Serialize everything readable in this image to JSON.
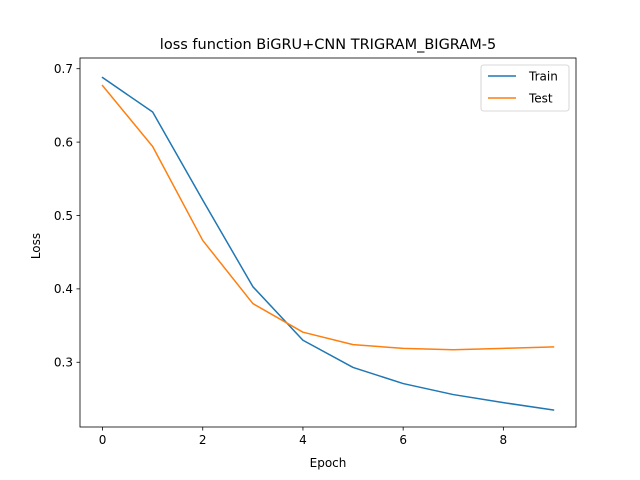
{
  "chart_data": {
    "type": "line",
    "title": "loss function BiGRU+CNN TRIGRAM_BIGRAM-5",
    "xlabel": "Epoch",
    "ylabel": "Loss",
    "x": [
      0,
      1,
      2,
      3,
      4,
      5,
      6,
      7,
      8,
      9
    ],
    "xlim": [
      -0.45,
      9.45
    ],
    "ylim": [
      0.2118,
      0.7146
    ],
    "xticks": [
      0,
      2,
      4,
      6,
      8
    ],
    "xtick_labels": [
      "0",
      "2",
      "4",
      "6",
      "8"
    ],
    "yticks": [
      0.3,
      0.4,
      0.5,
      0.6,
      0.7
    ],
    "ytick_labels": [
      "0.3",
      "0.4",
      "0.5",
      "0.6",
      "0.7"
    ],
    "grid": false,
    "legend_position": "top-right",
    "series": [
      {
        "name": "Train",
        "color": "#1f77b4",
        "values": [
          0.688,
          0.641,
          0.521,
          0.403,
          0.33,
          0.293,
          0.271,
          0.256,
          0.245,
          0.235
        ]
      },
      {
        "name": "Test",
        "color": "#ff7f0e",
        "values": [
          0.677,
          0.594,
          0.466,
          0.38,
          0.341,
          0.324,
          0.319,
          0.317,
          0.319,
          0.321
        ]
      }
    ]
  }
}
